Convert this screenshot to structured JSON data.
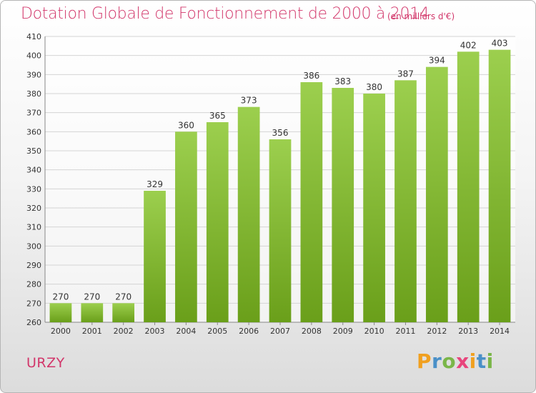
{
  "header": {
    "title": "Dotation Globale de Fonctionnement de 2000 à 2014",
    "subtitle": "(en milliers d'€)"
  },
  "commune": "URZY",
  "logo": {
    "letters": [
      "P",
      "r",
      "o",
      "x",
      "i",
      "t",
      "i"
    ],
    "colors": [
      "#f0a020",
      "#4a90c8",
      "#7ab648",
      "#e8457c",
      "#f0a020",
      "#4a90c8",
      "#7ab648"
    ]
  },
  "colors": {
    "bar_top": "#9ccf4e",
    "bar_bottom": "#6a9f1a",
    "grid": "#d4d4d4",
    "axis_text": "#333333"
  },
  "chart_data": {
    "type": "bar",
    "categories": [
      "2000",
      "2001",
      "2002",
      "2003",
      "2004",
      "2005",
      "2006",
      "2007",
      "2008",
      "2009",
      "2010",
      "2011",
      "2012",
      "2013",
      "2014"
    ],
    "values": [
      270,
      270,
      270,
      329,
      360,
      365,
      373,
      356,
      386,
      383,
      380,
      387,
      394,
      402,
      403
    ],
    "ylim": [
      260,
      410
    ],
    "yticks": [
      260,
      270,
      280,
      290,
      300,
      310,
      320,
      330,
      340,
      350,
      360,
      370,
      380,
      390,
      400,
      410
    ],
    "grid": true
  }
}
